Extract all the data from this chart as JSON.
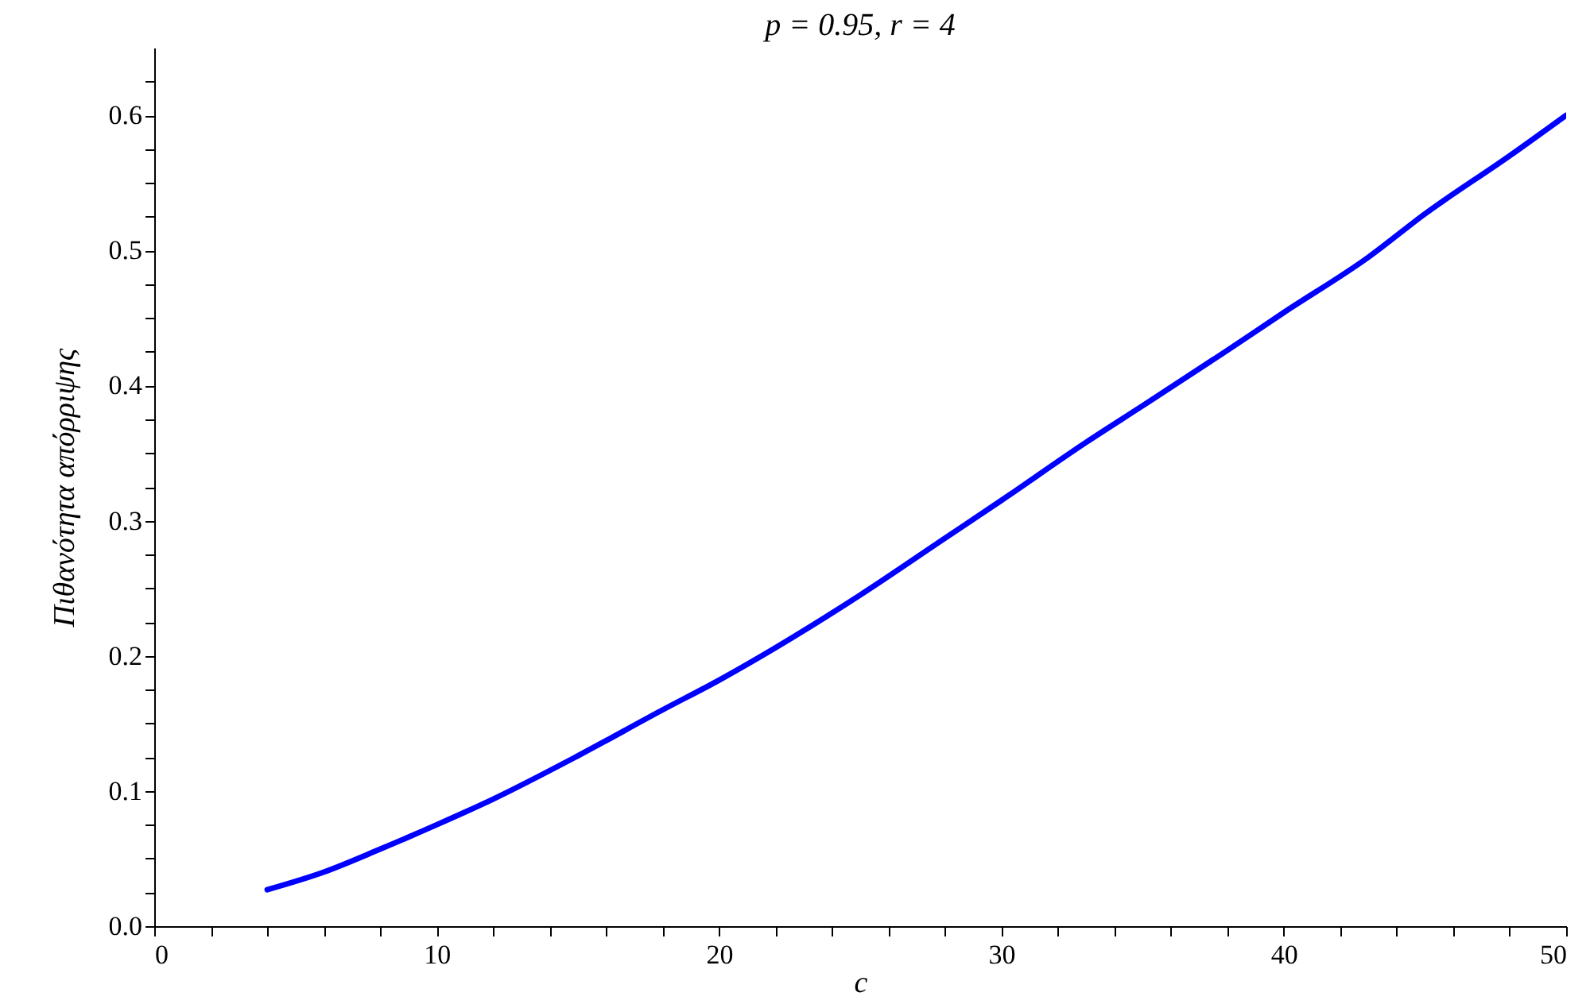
{
  "chart_data": {
    "type": "line",
    "title": "p = 0.95, r = 4",
    "xlabel": "c",
    "ylabel": "Πιθανότητα απόρριψης",
    "x": [
      4,
      6,
      8,
      10,
      12,
      15,
      18,
      20,
      22,
      25,
      28,
      30,
      33,
      35,
      38,
      40,
      43,
      45,
      48,
      50
    ],
    "series": [
      {
        "color": "#0000ff",
        "values": [
          0.027,
          0.04,
          0.057,
          0.075,
          0.094,
          0.126,
          0.16,
          0.182,
          0.206,
          0.245,
          0.287,
          0.315,
          0.358,
          0.385,
          0.426,
          0.454,
          0.495,
          0.527,
          0.57,
          0.6
        ]
      }
    ],
    "xlim": [
      0,
      50
    ],
    "xticks": [
      0,
      {
        "value": 2,
        "label": null
      },
      {
        "value": 4,
        "label": null
      },
      {
        "value": 6,
        "label": null
      },
      {
        "value": 8,
        "label": null
      },
      10,
      {
        "value": 12,
        "label": null
      },
      {
        "value": 14,
        "label": null
      },
      {
        "value": 16,
        "label": null
      },
      {
        "value": 18,
        "label": null
      },
      20,
      {
        "value": 22,
        "label": null
      },
      {
        "value": 24,
        "label": null
      },
      {
        "value": 26,
        "label": null
      },
      {
        "value": 28,
        "label": null
      },
      30,
      {
        "value": 32,
        "label": null
      },
      {
        "value": 34,
        "label": null
      },
      {
        "value": 36,
        "label": null
      },
      {
        "value": 38,
        "label": null
      },
      40,
      {
        "value": 42,
        "label": null
      },
      {
        "value": 44,
        "label": null
      },
      {
        "value": 46,
        "label": null
      },
      {
        "value": 48,
        "label": null
      },
      50
    ],
    "ylim": [
      0,
      0.65
    ],
    "yticks": [
      {
        "value": 0,
        "label": "0.0"
      },
      {
        "value": 0.025,
        "label": null
      },
      {
        "value": 0.05,
        "label": null
      },
      {
        "value": 0.075,
        "label": null
      },
      0.1,
      {
        "value": 0.125,
        "label": null
      },
      {
        "value": 0.15,
        "label": null
      },
      {
        "value": 0.175,
        "label": null
      },
      0.2,
      {
        "value": 0.225,
        "label": null
      },
      {
        "value": 0.25,
        "label": null
      },
      {
        "value": 0.275,
        "label": null
      },
      0.3,
      {
        "value": 0.325,
        "label": null
      },
      {
        "value": 0.35,
        "label": null
      },
      {
        "value": 0.375,
        "label": null
      },
      0.4,
      {
        "value": 0.425,
        "label": null
      },
      {
        "value": 0.45,
        "label": null
      },
      {
        "value": 0.475,
        "label": null
      },
      0.5,
      {
        "value": 0.525,
        "label": null
      },
      {
        "value": 0.55,
        "label": null
      },
      {
        "value": 0.575,
        "label": null
      },
      0.6,
      {
        "value": 0.625,
        "label": null
      }
    ],
    "grid": false
  }
}
